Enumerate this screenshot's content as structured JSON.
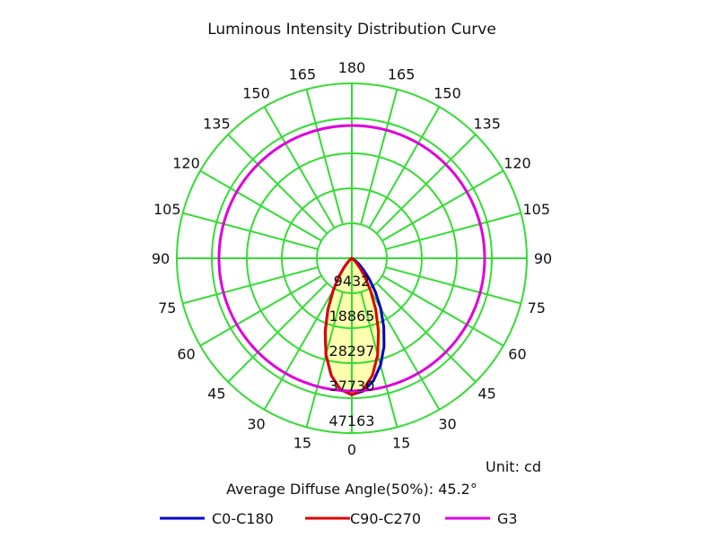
{
  "chart_data": {
    "type": "polar",
    "title": "Luminous Intensity Distribution Curve",
    "unit_label": "Unit: cd",
    "note": "Average Diffuse Angle(50%): 45.2°",
    "radial_max": 47163,
    "radial_ticks": [
      9432,
      18865,
      28297,
      37730,
      47163
    ],
    "angle_ticks_right": [
      "0",
      "15",
      "30",
      "45",
      "60",
      "75",
      "90",
      "105",
      "120",
      "135",
      "150",
      "165",
      "180"
    ],
    "angle_ticks_left": [
      "15",
      "30",
      "45",
      "60",
      "75",
      "90",
      "105",
      "120",
      "135",
      "150",
      "165"
    ],
    "angles": [
      0,
      5,
      10,
      15,
      20,
      25,
      30,
      35,
      40,
      45,
      50,
      55,
      60,
      65,
      70,
      75,
      80,
      85,
      90
    ],
    "series": [
      {
        "name": "C0-C180",
        "color": "#0000cc",
        "right": [
          36800,
          35950,
          33560,
          29880,
          25360,
          20390,
          15530,
          11110,
          7430,
          4600,
          2610,
          1290,
          580,
          200,
          50,
          0,
          0,
          0,
          0
        ],
        "left": [
          36800,
          35550,
          32050,
          26940,
          21010,
          15200,
          10080,
          6110,
          3350,
          1620,
          700,
          260,
          70,
          0,
          0,
          0,
          0,
          0,
          0
        ]
      },
      {
        "name": "C90-C270",
        "color": "#dd0000",
        "right": [
          36800,
          35550,
          32050,
          26940,
          21010,
          15200,
          10080,
          6110,
          3350,
          1620,
          700,
          260,
          70,
          0,
          0,
          0,
          0,
          0,
          0
        ],
        "left": [
          36800,
          35550,
          32050,
          26940,
          21010,
          15200,
          10080,
          6110,
          3350,
          1620,
          700,
          260,
          70,
          0,
          0,
          0,
          0,
          0,
          0
        ]
      },
      {
        "name": "G3",
        "color": "#dd00dd",
        "constant": 35800
      }
    ],
    "grid": true,
    "legend": "bottom"
  }
}
